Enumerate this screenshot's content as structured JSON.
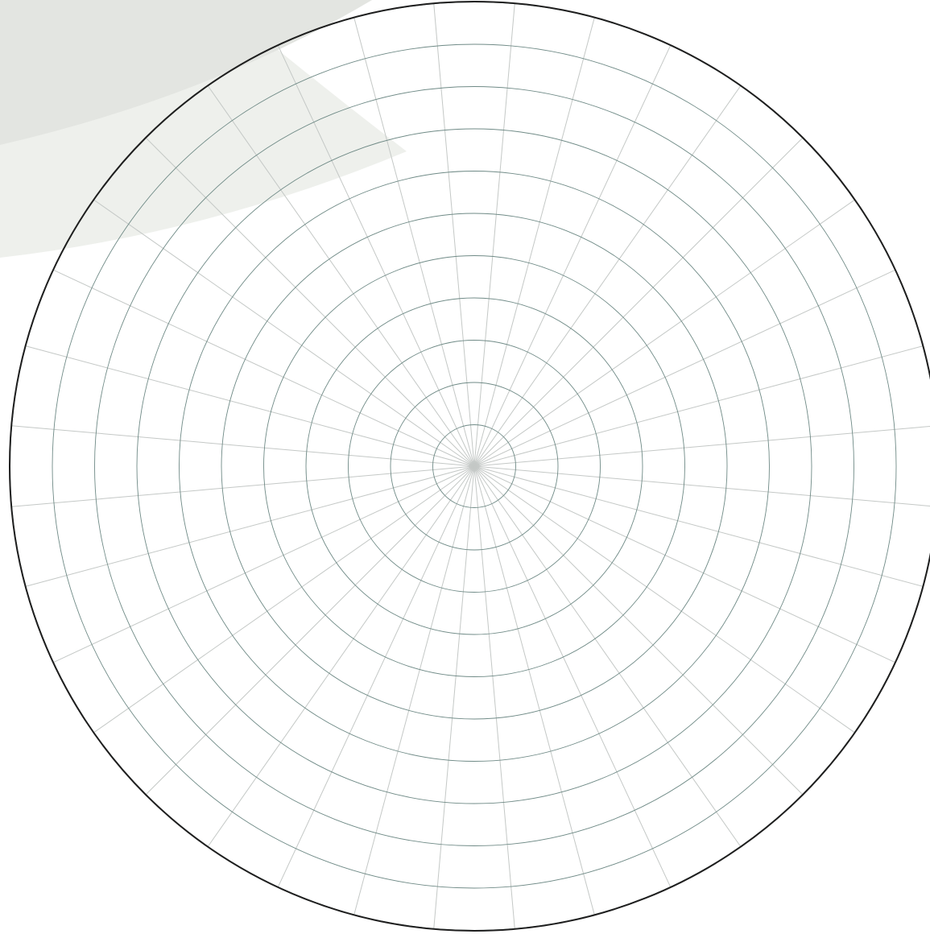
{
  "colors": {
    "background": "#ffffff",
    "swoosh_light": "#eef0ec",
    "swoosh_dark": "#e3e5e1",
    "ring_stroke": "#6f8a86",
    "spoke_stroke": "#c4c8c6",
    "outline_stroke": "#1e1e1e"
  },
  "grid": {
    "ring_count": 11,
    "spoke_count": 36
  }
}
